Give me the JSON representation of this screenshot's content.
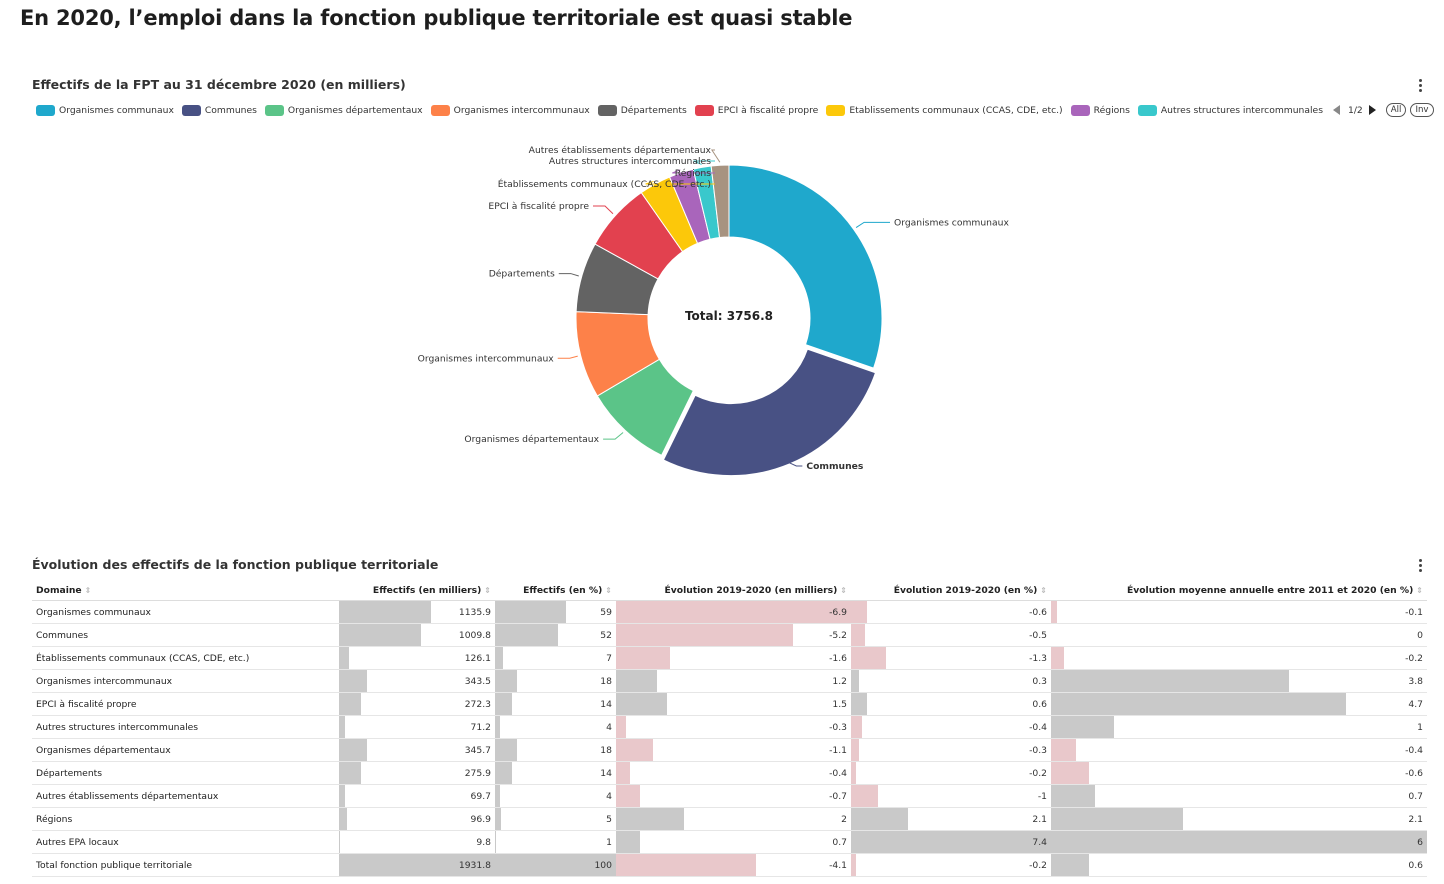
{
  "page_title": "En 2020, l’emploi dans la fonction publique territoriale est quasi stable",
  "donut_card": {
    "title": "Effectifs de la FPT au 31 décembre 2020 (en milliers)",
    "pager": {
      "label": "1/2",
      "all": "All",
      "inv": "Inv"
    },
    "legend": [
      {
        "label": "Organismes communaux",
        "color": "#1fa8cc"
      },
      {
        "label": "Communes",
        "color": "#485184"
      },
      {
        "label": "Organismes départementaux",
        "color": "#5bc488"
      },
      {
        "label": "Organismes intercommunaux",
        "color": "#fd8149"
      },
      {
        "label": "Départements",
        "color": "#636363"
      },
      {
        "label": "EPCI à fiscalité propre",
        "color": "#e2414f"
      },
      {
        "label": "Etablissements communaux (CCAS, CDE, etc.)",
        "color": "#fcc80a"
      },
      {
        "label": "Régions",
        "color": "#a965bb"
      },
      {
        "label": "Autres structures intercommunales",
        "color": "#39c8cc"
      }
    ]
  },
  "chart_data": [
    {
      "type": "pie",
      "center_label": "Total: 3756.8",
      "categories": [
        "Organismes communaux",
        "Communes",
        "Organismes départementaux",
        "Organismes intercommunaux",
        "Départements",
        "EPCI à fiscalité propre",
        "Établissements communaux (CCAS, CDE, etc.)",
        "Régions",
        "Autres structures intercommunales",
        "Autres établissements départementaux"
      ],
      "values": [
        1135.9,
        1009.8,
        345.7,
        343.5,
        275.9,
        272.3,
        126.1,
        96.9,
        71.2,
        69.7
      ],
      "colors": [
        "#1fa8cc",
        "#485184",
        "#5bc488",
        "#fd8149",
        "#636363",
        "#e2414f",
        "#fcc80a",
        "#a965bb",
        "#39c8cc",
        "#a79380"
      ]
    },
    {
      "type": "table",
      "title": "Évolution des effectifs de la fonction publique territoriale",
      "columns": [
        "Domaine",
        "Effectifs (en milliers)",
        "Effectifs (en %)",
        "Évolution 2019-2020 (en milliers)",
        "Évolution 2019-2020 (en %)",
        "Évolution moyenne annuelle entre 2011 et 2020 (en %)"
      ],
      "rows": [
        [
          "Organismes communaux",
          "1135.9",
          "59",
          "-6.9",
          "-0.6",
          "-0.1"
        ],
        [
          "Communes",
          "1009.8",
          "52",
          "-5.2",
          "-0.5",
          "0"
        ],
        [
          "Établissements communaux (CCAS, CDE, etc.)",
          "126.1",
          "7",
          "-1.6",
          "-1.3",
          "-0.2"
        ],
        [
          "Organismes intercommunaux",
          "343.5",
          "18",
          "1.2",
          "0.3",
          "3.8"
        ],
        [
          "EPCI à fiscalité propre",
          "272.3",
          "14",
          "1.5",
          "0.6",
          "4.7"
        ],
        [
          "Autres structures intercommunales",
          "71.2",
          "4",
          "-0.3",
          "-0.4",
          "1"
        ],
        [
          "Organismes départementaux",
          "345.7",
          "18",
          "-1.1",
          "-0.3",
          "-0.4"
        ],
        [
          "Départements",
          "275.9",
          "14",
          "-0.4",
          "-0.2",
          "-0.6"
        ],
        [
          "Autres établissements départementaux",
          "69.7",
          "4",
          "-0.7",
          "-1",
          "0.7"
        ],
        [
          "Régions",
          "96.9",
          "5",
          "2",
          "2.1",
          "2.1"
        ],
        [
          "Autres EPA locaux",
          "9.8",
          "1",
          "0.7",
          "7.4",
          "6"
        ],
        [
          "Total fonction publique territoriale",
          "1931.8",
          "100",
          "-4.1",
          "-0.2",
          "0.6"
        ]
      ]
    }
  ]
}
